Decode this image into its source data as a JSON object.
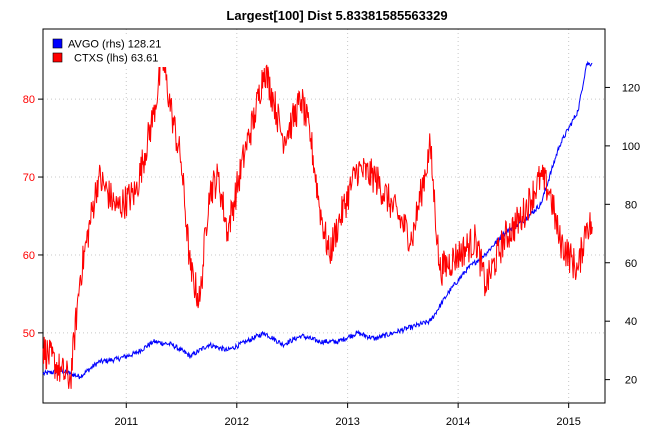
{
  "chart_data": {
    "type": "line",
    "title": "Largest[100] Dist 5.83381585563329",
    "x_ticks": [
      "2011",
      "2012",
      "2013",
      "2014",
      "2015"
    ],
    "xlim": [
      "2010-04",
      "2015-05"
    ],
    "y_left": {
      "ticks": [
        50,
        60,
        70,
        80
      ],
      "lim": [
        41,
        89
      ],
      "color": "#ff0000"
    },
    "y_right": {
      "ticks": [
        20,
        40,
        60,
        80,
        100,
        120
      ],
      "lim": [
        12,
        140
      ],
      "color": "#000000"
    },
    "grid": true,
    "legend_position": "top-left",
    "series": [
      {
        "name": "AVGO (rhs)",
        "last_value": "128.21",
        "axis": "right",
        "color": "#0000ff",
        "points": [
          [
            "2010-04-01",
            22
          ],
          [
            "2010-06-01",
            23
          ],
          [
            "2010-08-01",
            21
          ],
          [
            "2010-10-01",
            26
          ],
          [
            "2010-12-01",
            27
          ],
          [
            "2011-02-01",
            29
          ],
          [
            "2011-04-01",
            33
          ],
          [
            "2011-06-01",
            32
          ],
          [
            "2011-08-01",
            28
          ],
          [
            "2011-10-01",
            32
          ],
          [
            "2011-12-01",
            30
          ],
          [
            "2012-02-01",
            33
          ],
          [
            "2012-04-01",
            36
          ],
          [
            "2012-06-01",
            32
          ],
          [
            "2012-08-01",
            35
          ],
          [
            "2012-10-01",
            33
          ],
          [
            "2012-12-01",
            33
          ],
          [
            "2013-02-01",
            36
          ],
          [
            "2013-04-01",
            34
          ],
          [
            "2013-06-01",
            36
          ],
          [
            "2013-08-01",
            38
          ],
          [
            "2013-10-01",
            40
          ],
          [
            "2013-12-01",
            50
          ],
          [
            "2014-02-01",
            58
          ],
          [
            "2014-04-01",
            63
          ],
          [
            "2014-06-01",
            70
          ],
          [
            "2014-08-01",
            74
          ],
          [
            "2014-10-01",
            80
          ],
          [
            "2014-12-01",
            100
          ],
          [
            "2015-02-01",
            112
          ],
          [
            "2015-03-01",
            128
          ],
          [
            "2015-03-20",
            128.21
          ]
        ]
      },
      {
        "name": "CTXS (lhs)",
        "last_value": "63.61",
        "axis": "left",
        "color": "#ff0000",
        "points": [
          [
            "2010-04-01",
            48
          ],
          [
            "2010-06-01",
            45
          ],
          [
            "2010-07-01",
            44
          ],
          [
            "2010-08-01",
            57
          ],
          [
            "2010-10-01",
            70
          ],
          [
            "2010-12-01",
            66
          ],
          [
            "2011-02-01",
            68
          ],
          [
            "2011-04-01",
            78
          ],
          [
            "2011-05-01",
            85
          ],
          [
            "2011-06-01",
            78
          ],
          [
            "2011-07-01",
            72
          ],
          [
            "2011-08-01",
            58
          ],
          [
            "2011-09-01",
            54
          ],
          [
            "2011-10-01",
            68
          ],
          [
            "2011-11-01",
            70
          ],
          [
            "2011-12-01",
            63
          ],
          [
            "2012-02-01",
            74
          ],
          [
            "2012-03-01",
            78
          ],
          [
            "2012-04-01",
            84
          ],
          [
            "2012-05-01",
            80
          ],
          [
            "2012-06-01",
            75
          ],
          [
            "2012-07-01",
            77
          ],
          [
            "2012-08-01",
            80
          ],
          [
            "2012-09-01",
            75
          ],
          [
            "2012-10-01",
            66
          ],
          [
            "2012-11-01",
            60
          ],
          [
            "2012-12-01",
            64
          ],
          [
            "2013-02-01",
            71
          ],
          [
            "2013-04-01",
            70
          ],
          [
            "2013-06-01",
            66
          ],
          [
            "2013-08-01",
            62
          ],
          [
            "2013-09-01",
            68
          ],
          [
            "2013-10-01",
            74
          ],
          [
            "2013-11-01",
            58
          ],
          [
            "2014-01-01",
            60
          ],
          [
            "2014-03-01",
            62
          ],
          [
            "2014-04-01",
            56
          ],
          [
            "2014-06-01",
            62
          ],
          [
            "2014-08-01",
            65
          ],
          [
            "2014-10-01",
            70
          ],
          [
            "2014-11-01",
            68
          ],
          [
            "2014-12-01",
            62
          ],
          [
            "2015-02-01",
            58
          ],
          [
            "2015-03-01",
            64
          ],
          [
            "2015-03-20",
            63.61
          ]
        ]
      }
    ]
  }
}
